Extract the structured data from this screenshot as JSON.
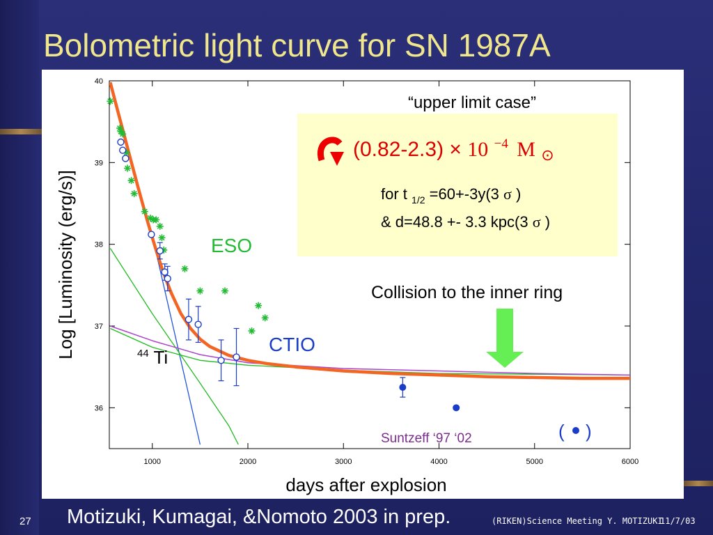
{
  "slide": {
    "title": "Bolometric light curve for SN 1987A",
    "citation": "Motizuki, Kumagai, &Nomoto 2003 in prep.",
    "page_number": "27",
    "footer_meta": "(RIKEN)Science Meeting Y. MOTIZUKI",
    "footer_date": "11/7/03"
  },
  "colors": {
    "background": "#22276b",
    "title": "#f0e68c",
    "total_curve": "#f26522",
    "eso": "#22bb33",
    "ctio": "#1a3cc8",
    "suntzeff": "#7b2d8e",
    "model_blue": "#2255dd",
    "model_green": "#22bb22",
    "model_purple": "#aa44cc",
    "highlight_box": "#ffffcc",
    "arrow_green": "#66ee55",
    "arrow_red": "#ee0000"
  },
  "chart_data": {
    "type": "scatter",
    "xlabel": "days after explosion",
    "ylabel": "Log [Luminosity (erg/s)]",
    "xlim": [
      550,
      6000
    ],
    "ylim": [
      35.5,
      40
    ],
    "xticks": [
      1000,
      2000,
      3000,
      4000,
      5000,
      6000
    ],
    "yticks": [
      36,
      37,
      38,
      39,
      40
    ],
    "series": [
      {
        "name": "ESO",
        "marker": "asterisk",
        "x": [
          560,
          660,
          670,
          690,
          730,
          740,
          780,
          810,
          920,
          980,
          1010,
          1040,
          1080,
          1100,
          1120,
          1340,
          1500,
          1760,
          2040,
          2110,
          2180
        ],
        "y": [
          39.75,
          39.42,
          39.38,
          39.35,
          39.12,
          38.93,
          38.78,
          38.62,
          38.4,
          38.32,
          38.3,
          38.3,
          38.22,
          38.08,
          37.93,
          37.7,
          37.43,
          37.43,
          36.94,
          37.25,
          37.1
        ]
      },
      {
        "name": "CTIO",
        "marker": "circle",
        "x": [
          670,
          690,
          720,
          990,
          1080,
          1130,
          1160,
          1380,
          1480,
          1720,
          1880
        ],
        "y": [
          39.25,
          39.15,
          39.05,
          38.12,
          37.92,
          37.66,
          37.58,
          37.08,
          37.02,
          36.58,
          36.62
        ],
        "err": [
          0,
          0,
          0,
          0,
          0.1,
          0.1,
          0.15,
          0.25,
          0.22,
          0.25,
          0.35
        ]
      },
      {
        "name": "Suntzeff ‘97 ‘02",
        "marker": "dot",
        "x": [
          3620,
          4180
        ],
        "y": [
          36.25,
          36.0
        ],
        "err": [
          0.12,
          0
        ]
      }
    ],
    "model_curves": [
      {
        "id": "total",
        "color": "#f26522",
        "width": 4.5,
        "x": [
          560,
          600,
          650,
          700,
          750,
          800,
          850,
          900,
          950,
          1000,
          1050,
          1100,
          1150,
          1200,
          1300,
          1400,
          1500,
          1600,
          1800,
          2000,
          2200,
          2500,
          3000,
          3500,
          4000,
          4500,
          5000,
          5500,
          6000
        ],
        "y": [
          39.98,
          39.8,
          39.58,
          39.36,
          39.14,
          38.92,
          38.7,
          38.49,
          38.28,
          38.08,
          37.89,
          37.71,
          37.55,
          37.4,
          37.15,
          36.97,
          36.84,
          36.75,
          36.64,
          36.58,
          36.54,
          36.5,
          36.45,
          36.42,
          36.4,
          36.38,
          36.37,
          36.36,
          36.36
        ]
      },
      {
        "id": "steep-blue",
        "color": "#2255dd",
        "width": 1.3,
        "x": [
          560,
          1000,
          1500
        ],
        "y": [
          39.98,
          38.1,
          35.55
        ]
      },
      {
        "id": "green-decline",
        "color": "#22bb22",
        "width": 1.3,
        "x": [
          560,
          1000,
          1500,
          1800,
          1900
        ],
        "y": [
          37.95,
          37.15,
          36.3,
          35.78,
          35.55
        ]
      },
      {
        "id": "green-flat",
        "color": "#22bb22",
        "width": 1.3,
        "x": [
          560,
          1000,
          1500,
          2000,
          3000,
          4000,
          6000
        ],
        "y": [
          36.97,
          36.74,
          36.58,
          36.52,
          36.46,
          36.42,
          36.4
        ]
      },
      {
        "id": "purple-flat",
        "color": "#aa44cc",
        "width": 1.5,
        "x": [
          560,
          1000,
          1500,
          2000,
          3000,
          4000,
          5000,
          6000
        ],
        "y": [
          37.0,
          36.82,
          36.65,
          36.55,
          36.48,
          36.45,
          36.42,
          36.4
        ]
      }
    ],
    "annotations": {
      "upper_limit": "“upper limit case”",
      "mass_mantissa": "(0.82-2.3)",
      "mass_times": "×",
      "mass_base": "10",
      "mass_exponent": "−4",
      "mass_unit": "M",
      "mass_sun": "⊙",
      "half_life_prefix": "for t",
      "half_life_sub": "1/2",
      "half_life_value": "=60+-3y(3",
      "sigma": "σ",
      "paren_close": ")",
      "distance_value": "& d=48.8 +- 3.3 kpc(3",
      "collision": "Collision to the inner ring",
      "eso": "ESO",
      "ctio": "CTIO",
      "ti_mass": "44",
      "ti_symbol": "Ti",
      "suntzeff": "Suntzeff ‘97 ‘02",
      "legend_open": "(",
      "legend_close": ")"
    }
  }
}
